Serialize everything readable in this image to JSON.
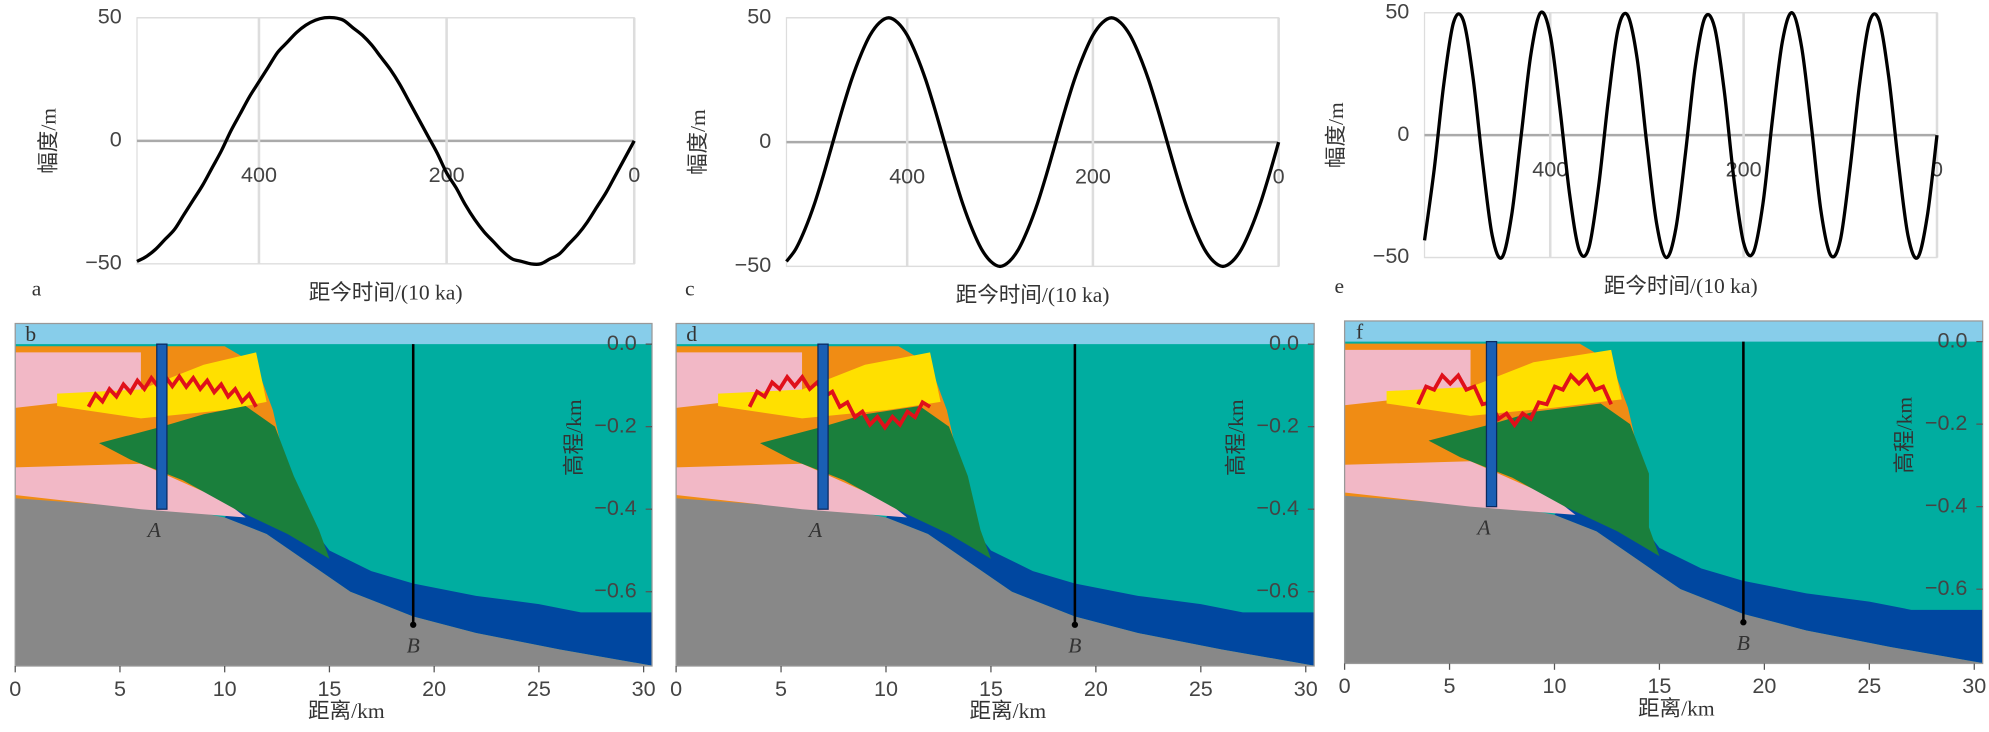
{
  "chart_data": [
    {
      "type": "line",
      "panel_label": "a",
      "xlabel": "距今时间/(10 ka)",
      "ylabel": "幅度/m",
      "color": "#000000",
      "xlim": [
        530,
        0
      ],
      "ylim": [
        -50,
        50
      ],
      "xticks": [
        400,
        200,
        0
      ],
      "yticks": [
        {
          "value": -50,
          "label": "−50"
        },
        0,
        50
      ],
      "x": [
        0,
        10,
        20,
        30,
        40,
        50,
        60,
        70,
        80,
        90,
        100,
        110,
        120,
        130,
        140,
        150,
        160,
        170,
        180,
        190,
        200,
        210,
        220,
        230,
        240,
        250,
        260,
        270,
        280,
        290,
        300,
        310,
        320,
        330,
        340,
        350,
        360,
        370,
        380,
        390,
        400,
        410,
        420,
        430,
        440,
        450,
        460,
        470,
        480,
        490,
        500,
        510,
        520,
        530
      ],
      "values": [
        0,
        -7,
        -14,
        -21,
        -27,
        -33,
        -38,
        -42,
        -46,
        -48,
        -50,
        -50,
        -49,
        -48,
        -45,
        -41,
        -37,
        -32,
        -26,
        -19,
        -13,
        -5,
        2,
        9,
        16,
        23,
        29,
        34,
        39,
        43,
        46,
        49,
        50,
        50,
        49,
        47,
        44,
        40,
        36,
        30,
        24,
        18,
        11,
        4,
        -4,
        -11,
        -18,
        -24,
        -30,
        -36,
        -40,
        -44,
        -47,
        -49
      ]
    },
    {
      "type": "section",
      "panel_label": "b",
      "xlabel": "距离/km",
      "ylabel": "高程/km",
      "markers": [
        "A",
        "B"
      ],
      "xlim": [
        0,
        30.4
      ],
      "ylim": [
        -0.78,
        0.05
      ],
      "xticks": [
        0,
        5,
        10,
        15,
        20,
        25,
        30
      ],
      "yticks": [
        {
          "value": 0,
          "label": "0.0"
        },
        {
          "value": -0.2,
          "label": "−0.2"
        },
        {
          "value": -0.4,
          "label": "−0.4"
        },
        {
          "value": -0.6,
          "label": "−0.6"
        }
      ]
    },
    {
      "type": "line",
      "panel_label": "c",
      "xlabel": "距今时间/(10 ka)",
      "ylabel": "幅度/m",
      "color": "#000000",
      "xlim": [
        530,
        0
      ],
      "ylim": [
        -50,
        50
      ],
      "xticks": [
        400,
        200,
        0
      ],
      "yticks": [
        {
          "value": -50,
          "label": "−50"
        },
        0,
        50
      ],
      "x": [
        0,
        10,
        20,
        30,
        40,
        50,
        60,
        70,
        80,
        90,
        100,
        110,
        120,
        130,
        140,
        150,
        160,
        170,
        180,
        190,
        200,
        210,
        220,
        230,
        240,
        250,
        260,
        270,
        280,
        290,
        300,
        310,
        320,
        330,
        340,
        350,
        360,
        370,
        380,
        390,
        400,
        410,
        420,
        430,
        440,
        450,
        460,
        470,
        480,
        490,
        500,
        510,
        520,
        530
      ],
      "values": [
        0,
        -13,
        -25,
        -35,
        -43,
        -48,
        -50,
        -48,
        -43,
        -35,
        -25,
        -13,
        0,
        13,
        25,
        35,
        43,
        48,
        50,
        48,
        43,
        35,
        25,
        13,
        0,
        -13,
        -25,
        -35,
        -43,
        -48,
        -50,
        -48,
        -43,
        -35,
        -25,
        -13,
        0,
        13,
        25,
        35,
        43,
        48,
        50,
        48,
        43,
        35,
        25,
        13,
        0,
        -13,
        -25,
        -35,
        -43,
        -48
      ]
    },
    {
      "type": "section",
      "panel_label": "d",
      "xlabel": "距离/km",
      "ylabel": "高程/km",
      "markers": [
        "A",
        "B"
      ],
      "xlim": [
        0,
        30.4
      ],
      "ylim": [
        -0.78,
        0.05
      ],
      "xticks": [
        0,
        5,
        10,
        15,
        20,
        25,
        30
      ],
      "yticks": [
        {
          "value": 0,
          "label": "0.0"
        },
        {
          "value": -0.2,
          "label": "−0.2"
        },
        {
          "value": -0.4,
          "label": "−0.4"
        },
        {
          "value": -0.6,
          "label": "−0.6"
        }
      ]
    },
    {
      "type": "line",
      "panel_label": "e",
      "xlabel": "距今时间/(10 ka)",
      "ylabel": "幅度/m",
      "color": "#000000",
      "xlim": [
        530,
        0
      ],
      "ylim": [
        -50,
        50
      ],
      "xticks": [
        400,
        200,
        0
      ],
      "yticks": [
        {
          "value": -50,
          "label": "−50"
        },
        0,
        50
      ],
      "x": [
        0,
        10,
        20,
        30,
        40,
        50,
        60,
        70,
        80,
        90,
        100,
        110,
        120,
        130,
        140,
        150,
        160,
        170,
        180,
        190,
        200,
        210,
        220,
        230,
        240,
        250,
        260,
        270,
        280,
        290,
        300,
        310,
        320,
        330,
        340,
        350,
        360,
        370,
        380,
        390,
        400,
        410,
        420,
        430,
        440,
        450,
        460,
        470,
        480,
        490,
        500,
        510,
        520,
        530
      ],
      "values": [
        0,
        -33,
        -50,
        -41,
        -11,
        24,
        47,
        46,
        21,
        -14,
        -43,
        -49,
        -31,
        4,
        36,
        50,
        38,
        7,
        -28,
        -48,
        -44,
        -18,
        18,
        44,
        48,
        28,
        -7,
        -38,
        -50,
        -36,
        -4,
        31,
        49,
        43,
        14,
        -21,
        -46,
        -47,
        -24,
        11,
        41,
        50,
        33,
        0,
        -33,
        -50,
        -41,
        -11,
        24,
        47,
        46,
        21,
        -14,
        -43
      ]
    },
    {
      "type": "section",
      "panel_label": "f",
      "xlabel": "距离/km",
      "ylabel": "高程/km",
      "markers": [
        "A",
        "B"
      ],
      "xlim": [
        0,
        30.4
      ],
      "ylim": [
        -0.78,
        0.05
      ],
      "xticks": [
        0,
        5,
        10,
        15,
        20,
        25,
        30
      ],
      "yticks": [
        {
          "value": 0,
          "label": "0.0"
        },
        {
          "value": -0.2,
          "label": "−0.2"
        },
        {
          "value": -0.4,
          "label": "−0.4"
        },
        {
          "value": -0.6,
          "label": "−0.6"
        }
      ]
    }
  ]
}
